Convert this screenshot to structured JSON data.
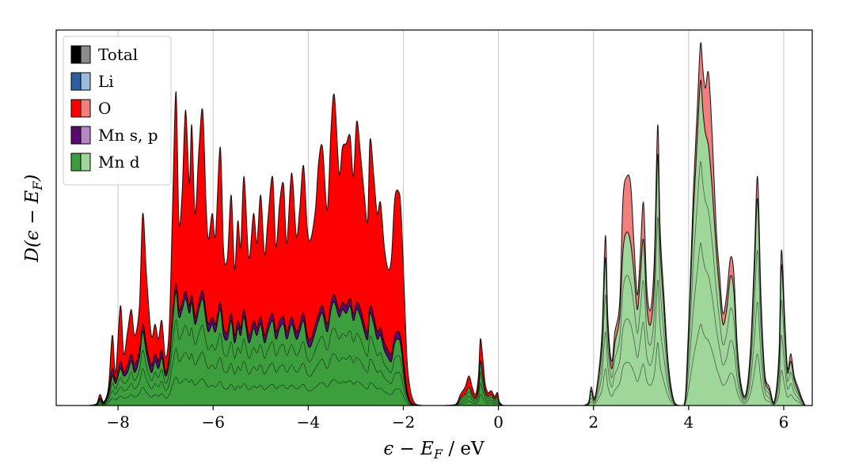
{
  "chart_data": {
    "type": "area",
    "title": "",
    "xlabel": "ϵ − E_F / eV",
    "ylabel": "D(ϵ − E_F)",
    "xlim": [
      -9.3,
      6.6
    ],
    "ylim": [
      0,
      1.0
    ],
    "xticks": [
      -8,
      -6,
      -4,
      -2,
      0,
      2,
      4,
      6
    ],
    "xtick_labels": [
      "−8",
      "−6",
      "−4",
      "−2",
      "0",
      "2",
      "4",
      "6"
    ],
    "grid": "vertical",
    "legend_position": "top-left",
    "legend": [
      {
        "name": "Total",
        "dark": "#000000",
        "light": "#8c8c8c"
      },
      {
        "name": "Li",
        "dark": "#2c5f9e",
        "light": "#9dbbdc"
      },
      {
        "name": "O",
        "dark": "#ff0000",
        "light": "#f37e7e"
      },
      {
        "name": "Mn s, p",
        "dark": "#5a0a6e",
        "light": "#b487c5"
      },
      {
        "name": "Mn d",
        "dark": "#3c9e3c",
        "light": "#9fd69a"
      }
    ],
    "series": [
      {
        "name": "O",
        "band": "valence",
        "x": [
          -8.6,
          -8.45,
          -8.38,
          -8.3,
          -8.2,
          -8.12,
          -8.05,
          -7.95,
          -7.88,
          -7.8,
          -7.72,
          -7.65,
          -7.55,
          -7.48,
          -7.4,
          -7.3,
          -7.22,
          -7.15,
          -7.08,
          -7.0,
          -6.92,
          -6.85,
          -6.78,
          -6.72,
          -6.65,
          -6.58,
          -6.5,
          -6.45,
          -6.38,
          -6.3,
          -6.22,
          -6.15,
          -6.1,
          -6.02,
          -5.95,
          -5.85,
          -5.78,
          -5.7,
          -5.62,
          -5.55,
          -5.48,
          -5.42,
          -5.35,
          -5.25,
          -5.15,
          -5.08,
          -5.0,
          -4.92,
          -4.85,
          -4.75,
          -4.68,
          -4.6,
          -4.52,
          -4.45,
          -4.35,
          -4.25,
          -4.18,
          -4.1,
          -4.02,
          -3.95,
          -3.85,
          -3.78,
          -3.7,
          -3.6,
          -3.52,
          -3.45,
          -3.35,
          -3.28,
          -3.2,
          -3.12,
          -3.05,
          -2.98,
          -2.9,
          -2.82,
          -2.75,
          -2.7,
          -2.62,
          -2.55,
          -2.48,
          -2.4,
          -2.32,
          -2.25,
          -2.18,
          -2.1,
          -2.05,
          -1.98,
          -1.92,
          -1.85,
          -1.75,
          -1.6
        ],
        "y": [
          0.0,
          0.005,
          0.03,
          0.01,
          0.05,
          0.19,
          0.09,
          0.27,
          0.14,
          0.2,
          0.26,
          0.19,
          0.27,
          0.52,
          0.35,
          0.19,
          0.22,
          0.18,
          0.23,
          0.13,
          0.22,
          0.55,
          0.85,
          0.5,
          0.58,
          0.8,
          0.6,
          0.76,
          0.52,
          0.69,
          0.8,
          0.55,
          0.45,
          0.52,
          0.46,
          0.7,
          0.42,
          0.4,
          0.57,
          0.37,
          0.5,
          0.43,
          0.62,
          0.4,
          0.52,
          0.44,
          0.57,
          0.41,
          0.5,
          0.62,
          0.43,
          0.55,
          0.6,
          0.44,
          0.63,
          0.46,
          0.53,
          0.65,
          0.48,
          0.45,
          0.53,
          0.66,
          0.7,
          0.53,
          0.75,
          0.84,
          0.63,
          0.7,
          0.71,
          0.73,
          0.62,
          0.77,
          0.68,
          0.57,
          0.5,
          0.72,
          0.62,
          0.52,
          0.55,
          0.43,
          0.37,
          0.4,
          0.56,
          0.58,
          0.53,
          0.31,
          0.12,
          0.04,
          0.005,
          0.0
        ]
      },
      {
        "name": "Mn s, p",
        "band": "valence",
        "x": [
          -8.6,
          -8.45,
          -8.38,
          -8.3,
          -8.2,
          -8.12,
          -8.05,
          -7.95,
          -7.88,
          -7.8,
          -7.72,
          -7.65,
          -7.55,
          -7.48,
          -7.4,
          -7.3,
          -7.22,
          -7.15,
          -7.08,
          -7.0,
          -6.92,
          -6.85,
          -6.78,
          -6.72,
          -6.65,
          -6.58,
          -6.5,
          -6.45,
          -6.38,
          -6.3,
          -6.22,
          -6.15,
          -6.1,
          -6.02,
          -5.95,
          -5.85,
          -5.78,
          -5.7,
          -5.62,
          -5.55,
          -5.48,
          -5.42,
          -5.35,
          -5.25,
          -5.15,
          -5.08,
          -5.0,
          -4.92,
          -4.85,
          -4.75,
          -4.68,
          -4.6,
          -4.52,
          -4.45,
          -4.35,
          -4.25,
          -4.18,
          -4.1,
          -4.02,
          -3.95,
          -3.85,
          -3.78,
          -3.7,
          -3.6,
          -3.52,
          -3.45,
          -3.35,
          -3.28,
          -3.2,
          -3.12,
          -3.05,
          -2.98,
          -2.9,
          -2.82,
          -2.75,
          -2.7,
          -2.62,
          -2.55,
          -2.48,
          -2.4,
          -2.32,
          -2.25,
          -2.18,
          -2.1,
          -2.05,
          -1.98,
          -1.92,
          -1.85,
          -1.75,
          -1.6
        ],
        "y": [
          0.0,
          0.004,
          0.02,
          0.008,
          0.04,
          0.1,
          0.07,
          0.12,
          0.09,
          0.11,
          0.14,
          0.11,
          0.15,
          0.22,
          0.16,
          0.11,
          0.14,
          0.12,
          0.15,
          0.09,
          0.14,
          0.25,
          0.33,
          0.26,
          0.28,
          0.31,
          0.27,
          0.3,
          0.24,
          0.28,
          0.31,
          0.25,
          0.22,
          0.24,
          0.22,
          0.28,
          0.21,
          0.2,
          0.25,
          0.19,
          0.23,
          0.21,
          0.26,
          0.19,
          0.23,
          0.21,
          0.24,
          0.19,
          0.22,
          0.25,
          0.2,
          0.23,
          0.24,
          0.2,
          0.24,
          0.2,
          0.22,
          0.25,
          0.19,
          0.18,
          0.22,
          0.25,
          0.27,
          0.22,
          0.28,
          0.3,
          0.26,
          0.28,
          0.27,
          0.29,
          0.25,
          0.28,
          0.26,
          0.22,
          0.2,
          0.27,
          0.24,
          0.2,
          0.21,
          0.17,
          0.15,
          0.14,
          0.19,
          0.2,
          0.18,
          0.1,
          0.04,
          0.01,
          0.002,
          0.0
        ]
      },
      {
        "name": "Mn d",
        "band": "valence",
        "x": [
          -8.6,
          -8.45,
          -8.38,
          -8.3,
          -8.2,
          -8.12,
          -8.05,
          -7.95,
          -7.88,
          -7.8,
          -7.72,
          -7.65,
          -7.55,
          -7.48,
          -7.4,
          -7.3,
          -7.22,
          -7.15,
          -7.08,
          -7.0,
          -6.92,
          -6.85,
          -6.78,
          -6.72,
          -6.65,
          -6.58,
          -6.5,
          -6.45,
          -6.38,
          -6.3,
          -6.22,
          -6.15,
          -6.1,
          -6.02,
          -5.95,
          -5.85,
          -5.78,
          -5.7,
          -5.62,
          -5.55,
          -5.48,
          -5.42,
          -5.35,
          -5.25,
          -5.15,
          -5.08,
          -5.0,
          -4.92,
          -4.85,
          -4.75,
          -4.68,
          -4.6,
          -4.52,
          -4.45,
          -4.35,
          -4.25,
          -4.18,
          -4.1,
          -4.02,
          -3.95,
          -3.85,
          -3.78,
          -3.7,
          -3.6,
          -3.52,
          -3.45,
          -3.35,
          -3.28,
          -3.2,
          -3.12,
          -3.05,
          -2.98,
          -2.9,
          -2.82,
          -2.75,
          -2.7,
          -2.62,
          -2.55,
          -2.48,
          -2.4,
          -2.32,
          -2.25,
          -2.18,
          -2.1,
          -2.05,
          -1.98,
          -1.92,
          -1.85,
          -1.75,
          -1.6
        ],
        "y": [
          0.0,
          0.003,
          0.015,
          0.006,
          0.03,
          0.08,
          0.06,
          0.1,
          0.08,
          0.09,
          0.12,
          0.09,
          0.13,
          0.2,
          0.14,
          0.09,
          0.12,
          0.1,
          0.13,
          0.08,
          0.12,
          0.23,
          0.31,
          0.24,
          0.26,
          0.29,
          0.25,
          0.28,
          0.22,
          0.26,
          0.29,
          0.23,
          0.2,
          0.22,
          0.2,
          0.26,
          0.19,
          0.18,
          0.23,
          0.17,
          0.21,
          0.19,
          0.24,
          0.17,
          0.21,
          0.19,
          0.22,
          0.17,
          0.2,
          0.23,
          0.18,
          0.21,
          0.22,
          0.18,
          0.22,
          0.18,
          0.2,
          0.23,
          0.17,
          0.16,
          0.2,
          0.23,
          0.25,
          0.2,
          0.26,
          0.28,
          0.24,
          0.26,
          0.25,
          0.27,
          0.23,
          0.26,
          0.24,
          0.2,
          0.18,
          0.25,
          0.22,
          0.18,
          0.19,
          0.15,
          0.13,
          0.12,
          0.17,
          0.18,
          0.16,
          0.08,
          0.03,
          0.008,
          0.001,
          0.0
        ]
      },
      {
        "name": "O",
        "band": "mid",
        "x": [
          -1.15,
          -0.9,
          -0.8,
          -0.7,
          -0.62,
          -0.55,
          -0.48,
          -0.42,
          -0.38,
          -0.33,
          -0.28,
          -0.22,
          -0.15,
          -0.08,
          -0.02,
          0.02,
          0.1
        ],
        "y": [
          0.0,
          0.003,
          0.03,
          0.05,
          0.08,
          0.05,
          0.03,
          0.08,
          0.18,
          0.13,
          0.06,
          0.035,
          0.04,
          0.025,
          0.035,
          0.01,
          0.0
        ]
      },
      {
        "name": "Mn d",
        "band": "mid",
        "x": [
          -1.15,
          -0.9,
          -0.8,
          -0.7,
          -0.62,
          -0.55,
          -0.48,
          -0.42,
          -0.38,
          -0.33,
          -0.28,
          -0.22,
          -0.15,
          -0.08,
          -0.02,
          0.02,
          0.1
        ],
        "y": [
          0.0,
          0.002,
          0.02,
          0.03,
          0.05,
          0.03,
          0.02,
          0.05,
          0.12,
          0.08,
          0.04,
          0.025,
          0.03,
          0.018,
          0.025,
          0.006,
          0.0
        ]
      },
      {
        "name": "O",
        "band": "conduction",
        "x": [
          1.8,
          1.9,
          1.95,
          2.02,
          2.1,
          2.18,
          2.25,
          2.3,
          2.38,
          2.45,
          2.55,
          2.62,
          2.7,
          2.78,
          2.85,
          2.92,
          2.98,
          3.05,
          3.12,
          3.2,
          3.28,
          3.35,
          3.4,
          3.48,
          3.55,
          3.62,
          3.7,
          3.8,
          3.9,
          3.95,
          4.02,
          4.1,
          4.18,
          4.25,
          4.3,
          4.35,
          4.42,
          4.5,
          4.58,
          4.65,
          4.72,
          4.8,
          4.88,
          4.95,
          5.02,
          5.1,
          5.2,
          5.3,
          5.38,
          5.45,
          5.52,
          5.6,
          5.7,
          5.8,
          5.9,
          5.95,
          6.02,
          6.08,
          6.15,
          6.22,
          6.3,
          6.38,
          6.45
        ],
        "y": [
          0.0,
          0.01,
          0.05,
          0.02,
          0.08,
          0.2,
          0.46,
          0.24,
          0.12,
          0.2,
          0.28,
          0.56,
          0.62,
          0.6,
          0.44,
          0.3,
          0.4,
          0.55,
          0.32,
          0.26,
          0.4,
          0.76,
          0.48,
          0.3,
          0.15,
          0.06,
          0.01,
          0.0,
          0.0,
          0.06,
          0.28,
          0.58,
          0.8,
          0.98,
          0.91,
          0.86,
          0.9,
          0.72,
          0.48,
          0.36,
          0.25,
          0.3,
          0.4,
          0.36,
          0.17,
          0.06,
          0.03,
          0.15,
          0.39,
          0.62,
          0.3,
          0.09,
          0.05,
          0.01,
          0.14,
          0.42,
          0.24,
          0.1,
          0.14,
          0.08,
          0.05,
          0.02,
          0.0
        ]
      },
      {
        "name": "Mn d",
        "band": "conduction",
        "x": [
          1.8,
          1.9,
          1.95,
          2.02,
          2.1,
          2.18,
          2.25,
          2.3,
          2.38,
          2.45,
          2.55,
          2.62,
          2.7,
          2.78,
          2.85,
          2.92,
          2.98,
          3.05,
          3.12,
          3.2,
          3.28,
          3.35,
          3.4,
          3.48,
          3.55,
          3.62,
          3.7,
          3.8,
          3.9,
          3.95,
          4.02,
          4.1,
          4.18,
          4.25,
          4.3,
          4.35,
          4.42,
          4.5,
          4.58,
          4.65,
          4.72,
          4.8,
          4.88,
          4.95,
          5.02,
          5.1,
          5.2,
          5.3,
          5.38,
          5.45,
          5.52,
          5.6,
          5.7,
          5.8,
          5.9,
          5.95,
          6.02,
          6.08,
          6.15,
          6.22,
          6.3,
          6.38,
          6.45
        ],
        "y": [
          0.0,
          0.008,
          0.04,
          0.015,
          0.07,
          0.17,
          0.4,
          0.21,
          0.1,
          0.17,
          0.24,
          0.42,
          0.47,
          0.44,
          0.36,
          0.26,
          0.34,
          0.45,
          0.27,
          0.22,
          0.34,
          0.68,
          0.43,
          0.26,
          0.13,
          0.05,
          0.008,
          0.0,
          0.0,
          0.05,
          0.25,
          0.52,
          0.72,
          0.88,
          0.8,
          0.74,
          0.7,
          0.58,
          0.42,
          0.31,
          0.22,
          0.26,
          0.35,
          0.31,
          0.15,
          0.05,
          0.025,
          0.13,
          0.35,
          0.56,
          0.27,
          0.08,
          0.04,
          0.008,
          0.12,
          0.38,
          0.21,
          0.09,
          0.12,
          0.07,
          0.04,
          0.015,
          0.0
        ]
      }
    ]
  }
}
